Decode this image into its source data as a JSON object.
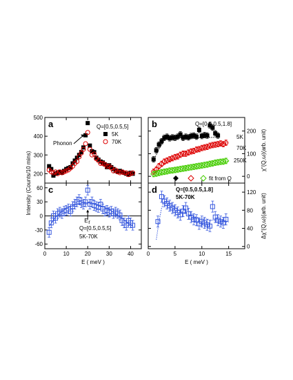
{
  "chart_data": [
    {
      "panel": "a",
      "type": "scatter",
      "annotation_q": "Q=[0.5,0.5,5]",
      "annotation_phonon": "Phonon",
      "xlim": [
        0,
        45
      ],
      "ylim": [
        150,
        500
      ],
      "x_ticks": [
        0,
        10,
        20,
        30,
        40
      ],
      "y_ticks": [
        200,
        300,
        400,
        500
      ],
      "ylabel": "Intensity (Counts/10 mins)",
      "legend_position": "upper-right",
      "series": [
        {
          "name": "5K",
          "marker": "filled-square",
          "color": "#000000",
          "x": [
            2,
            3,
            4,
            5,
            6,
            7,
            8,
            9,
            10,
            11,
            12,
            13,
            14,
            15,
            16,
            17,
            18,
            19,
            20,
            21,
            22,
            23,
            24,
            25,
            26,
            27,
            28,
            29,
            30,
            31,
            32,
            33,
            34,
            35,
            36,
            37,
            38,
            39,
            40,
            41
          ],
          "y": [
            240,
            225,
            190,
            200,
            205,
            210,
            205,
            215,
            225,
            230,
            235,
            255,
            270,
            285,
            300,
            315,
            340,
            405,
            470,
            350,
            320,
            315,
            285,
            275,
            265,
            260,
            250,
            235,
            245,
            235,
            225,
            215,
            210,
            215,
            210,
            205,
            200,
            195,
            205,
            200
          ]
        },
        {
          "name": "70K",
          "marker": "open-circle",
          "color": "#dd0000",
          "x": [
            2,
            3,
            4,
            5,
            6,
            7,
            8,
            9,
            10,
            11,
            12,
            13,
            14,
            15,
            16,
            17,
            18,
            19,
            20,
            21,
            22,
            23,
            24,
            25,
            26,
            27,
            28,
            29,
            30,
            31,
            32,
            33,
            34,
            35,
            36,
            37,
            38,
            39,
            40,
            41
          ],
          "y": [
            220,
            210,
            205,
            210,
            200,
            210,
            205,
            210,
            215,
            220,
            230,
            240,
            255,
            265,
            290,
            310,
            330,
            360,
            420,
            330,
            300,
            305,
            280,
            270,
            255,
            255,
            250,
            240,
            240,
            230,
            215,
            220,
            210,
            205,
            210,
            205,
            205,
            195,
            200,
            205
          ]
        }
      ]
    },
    {
      "panel": "b",
      "type": "scatter",
      "annotation_q": "Q=[0.5,0.5,1.8]",
      "xlim": [
        0,
        18
      ],
      "ylim": [
        -30,
        260
      ],
      "y2_ticks": [
        0,
        100,
        200
      ],
      "y2label": "χ\"(Q,ω)(arb. unit)",
      "legend_position": "bottom-right",
      "series": [
        {
          "name": "5K",
          "marker": "filled-square",
          "color": "#000000",
          "x": [
            1,
            1.5,
            2,
            2.5,
            3,
            3.5,
            4,
            4.5,
            5,
            5.5,
            6,
            6.5,
            7,
            7.5,
            8,
            8.5,
            9,
            9.5,
            10,
            10.5,
            11,
            11.5,
            12,
            12.5,
            13
          ],
          "y": [
            75,
            115,
            140,
            155,
            170,
            175,
            168,
            172,
            170,
            175,
            185,
            170,
            175,
            172,
            178,
            180,
            175,
            205,
            178,
            182,
            180,
            225,
            215,
            190,
            180
          ]
        },
        {
          "name": "70K",
          "marker": "open-circle",
          "color": "#dd0000",
          "x": [
            1,
            1.5,
            2,
            2.5,
            3,
            3.5,
            4,
            4.5,
            5,
            5.5,
            6,
            6.5,
            7,
            7.5,
            8,
            8.5,
            9,
            9.5,
            10,
            10.5,
            11,
            11.5,
            12,
            12.5,
            13,
            13.5,
            14,
            14.5
          ],
          "y": [
            20,
            30,
            45,
            55,
            65,
            70,
            75,
            80,
            85,
            88,
            95,
            100,
            100,
            105,
            110,
            112,
            118,
            120,
            125,
            128,
            130,
            135,
            138,
            140,
            142,
            145,
            142,
            148
          ]
        },
        {
          "name": "250K",
          "marker": "open-diamond",
          "color": "#44cc00",
          "x": [
            1,
            1.5,
            2,
            2.5,
            3,
            3.5,
            4,
            4.5,
            5,
            5.5,
            6,
            6.5,
            7,
            7.5,
            8,
            8.5,
            9,
            9.5,
            10,
            10.5,
            11,
            11.5,
            12,
            12.5,
            13,
            13.5,
            14,
            14.5
          ],
          "y": [
            10,
            12,
            15,
            18,
            20,
            22,
            25,
            26,
            28,
            30,
            32,
            34,
            36,
            38,
            40,
            42,
            44,
            46,
            48,
            50,
            52,
            55,
            57,
            60,
            62,
            64,
            65,
            68
          ]
        }
      ],
      "extra_legend": [
        {
          "label": "fit from Q",
          "marker": "open-diamond",
          "color": "#dd0000"
        }
      ],
      "side_labels": [
        "5K",
        "70K",
        "250K"
      ]
    },
    {
      "panel": "c",
      "type": "scatter",
      "annotation_q": "Q=[0.5,0.5,5]",
      "annotation_t": "5K-70K",
      "annotation_er": "E",
      "annotation_er_sub": "r",
      "xlim": [
        0,
        45
      ],
      "ylim": [
        -70,
        70
      ],
      "x_ticks": [
        0,
        10,
        20,
        30,
        40
      ],
      "y_ticks": [
        -60,
        -30,
        0,
        30,
        60
      ],
      "xlabel": "E ( meV )",
      "series": [
        {
          "name": "5K-70K",
          "marker": "open-square",
          "color": "#3355dd",
          "x": [
            2,
            3,
            4,
            5,
            6,
            7,
            8,
            9,
            10,
            11,
            12,
            13,
            14,
            15,
            16,
            17,
            18,
            19,
            20,
            21,
            22,
            23,
            24,
            25,
            26,
            27,
            28,
            29,
            30,
            31,
            32,
            33,
            34,
            35,
            36,
            37,
            38,
            39,
            40,
            41
          ],
          "y": [
            -35,
            -15,
            0,
            -5,
            5,
            8,
            5,
            10,
            12,
            15,
            10,
            20,
            25,
            30,
            35,
            28,
            25,
            30,
            55,
            25,
            30,
            22,
            20,
            18,
            25,
            15,
            10,
            12,
            8,
            10,
            5,
            8,
            5,
            2,
            -10,
            -15,
            -20,
            -10,
            -15,
            -20
          ]
        }
      ],
      "fit_curve": {
        "x": [
          2,
          5,
          8,
          11,
          14,
          17,
          20,
          23,
          26,
          29,
          32,
          35,
          38,
          41
        ],
        "y": [
          -22,
          -3,
          10,
          18,
          24,
          27,
          28,
          26,
          22,
          16,
          8,
          -2,
          -12,
          -22
        ]
      }
    },
    {
      "panel": "d",
      "type": "scatter",
      "annotation_q": "Q=[0.5,0.5,1.8]",
      "annotation_t": "5K-70K",
      "xlim": [
        0,
        18
      ],
      "ylim": [
        -5,
        140
      ],
      "x_ticks": [
        0,
        5,
        10,
        15
      ],
      "y2_ticks": [
        0,
        40,
        80,
        120
      ],
      "xlabel": "E ( meV )",
      "y2label": "Δχ\"(Q,ω)(arb. unit)",
      "series": [
        {
          "name": "5K-70K",
          "marker": "open-square",
          "color": "#3355dd",
          "x": [
            1.8,
            2.5,
            3,
            3.5,
            4,
            4.5,
            5,
            5.5,
            6,
            6.5,
            7,
            7.5,
            8,
            8.5,
            9,
            9.5,
            10,
            10.5,
            11,
            11.5,
            12,
            12.5,
            13,
            13.5,
            14,
            14.5
          ],
          "y": [
            55,
            110,
            100,
            95,
            90,
            85,
            80,
            75,
            70,
            78,
            85,
            72,
            65,
            60,
            58,
            50,
            55,
            52,
            48,
            45,
            88,
            65,
            58,
            55,
            52,
            60
          ]
        }
      ],
      "fit_curve": {
        "x": [
          1.5,
          2,
          2.5,
          3,
          4,
          5,
          6,
          8,
          10,
          12,
          14,
          15
        ],
        "y": [
          15,
          55,
          85,
          100,
          95,
          85,
          78,
          68,
          62,
          58,
          55,
          54
        ]
      }
    }
  ]
}
